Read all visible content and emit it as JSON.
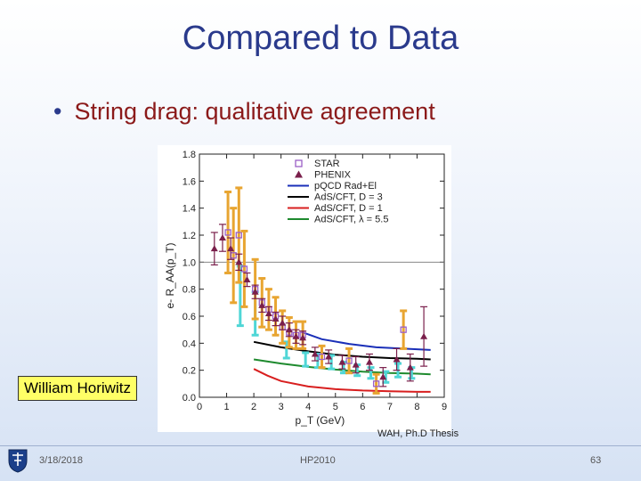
{
  "slide": {
    "title": "Compared to Data",
    "bullet": "String drag: qualitative agreement",
    "author_label": "William Horiwitz",
    "credit": "WAH, Ph.D Thesis",
    "footer": {
      "date": "3/18/2018",
      "event": "HP2010",
      "page": "63"
    }
  },
  "colors": {
    "title": "#2a3a8c",
    "bullet_text": "#8b1a1a",
    "star": "#9a5fc7",
    "phenix": "#7a1f4b",
    "pqcd": "#1a2fb8",
    "ads_d3": "#000000",
    "ads_d1": "#d81f1f",
    "ads_lambda": "#1e8a2e",
    "star_band": "#e8a531",
    "phenix_band": "#4fd6d6"
  },
  "chart_data": {
    "type": "scatter",
    "xlabel": "p_T (GeV)",
    "ylabel": "e- R_AA(p_T)",
    "xlim": [
      0,
      9
    ],
    "ylim": [
      0,
      1.8
    ],
    "x_ticks": [
      "0",
      "1",
      "2",
      "3",
      "4",
      "5",
      "6",
      "7",
      "8",
      "9"
    ],
    "y_ticks": [
      "0.0",
      "0.2",
      "0.4",
      "0.6",
      "0.8",
      "1.0",
      "1.2",
      "1.4",
      "1.6",
      "1.8"
    ],
    "reference_line_y": 1.0,
    "legend_position": "top-right",
    "legend": [
      "STAR",
      "PHENIX",
      "pQCD Rad+El",
      "AdS/CFT, D = 3",
      "AdS/CFT, D = 1",
      "AdS/CFT, λ = 5.5"
    ],
    "series": [
      {
        "name": "STAR",
        "kind": "points",
        "marker": "square",
        "x": [
          1.05,
          1.25,
          1.45,
          1.65,
          2.05,
          2.3,
          2.55,
          2.8,
          3.05,
          3.3,
          3.55,
          3.8,
          4.5,
          5.5,
          6.5,
          7.5
        ],
        "y": [
          1.22,
          1.05,
          1.2,
          0.95,
          0.8,
          0.7,
          0.65,
          0.6,
          0.52,
          0.48,
          0.46,
          0.46,
          0.3,
          0.27,
          0.1,
          0.5
        ],
        "err": [
          0.3,
          0.35,
          0.35,
          0.28,
          0.22,
          0.18,
          0.15,
          0.14,
          0.12,
          0.11,
          0.1,
          0.1,
          0.08,
          0.09,
          0.07,
          0.14
        ]
      },
      {
        "name": "PHENIX",
        "kind": "points",
        "marker": "triangle",
        "x": [
          0.55,
          0.85,
          1.15,
          1.45,
          1.75,
          2.05,
          2.3,
          2.55,
          2.8,
          3.05,
          3.3,
          3.55,
          3.8,
          4.25,
          4.75,
          5.25,
          5.75,
          6.25,
          6.75,
          7.25,
          7.75,
          8.25
        ],
        "y": [
          1.1,
          1.18,
          1.1,
          1.0,
          0.87,
          0.78,
          0.68,
          0.62,
          0.58,
          0.55,
          0.5,
          0.45,
          0.44,
          0.32,
          0.3,
          0.26,
          0.24,
          0.26,
          0.15,
          0.28,
          0.22,
          0.45
        ],
        "err": [
          0.12,
          0.1,
          0.08,
          0.06,
          0.05,
          0.05,
          0.05,
          0.05,
          0.05,
          0.05,
          0.05,
          0.05,
          0.05,
          0.05,
          0.05,
          0.05,
          0.06,
          0.06,
          0.07,
          0.08,
          0.1,
          0.22
        ]
      },
      {
        "name": "PHENIX systematic band",
        "kind": "errorbars",
        "x": [
          1.5,
          2.05,
          3.2,
          3.9,
          4.35,
          4.85,
          5.3,
          5.8,
          6.3,
          6.85,
          7.3,
          7.8
        ],
        "y": [
          0.75,
          0.62,
          0.35,
          0.28,
          0.27,
          0.26,
          0.22,
          0.2,
          0.18,
          0.15,
          0.2,
          0.18
        ],
        "err": [
          0.22,
          0.16,
          0.06,
          0.05,
          0.05,
          0.05,
          0.04,
          0.04,
          0.04,
          0.04,
          0.05,
          0.04
        ]
      },
      {
        "name": "pQCD Rad+El",
        "kind": "line",
        "x": [
          3.8,
          4.5,
          5.5,
          6.5,
          7.5,
          8.5
        ],
        "y": [
          0.48,
          0.43,
          0.395,
          0.37,
          0.36,
          0.35
        ]
      },
      {
        "name": "AdS/CFT, D = 3",
        "kind": "line",
        "x": [
          2.0,
          3.0,
          4.0,
          5.0,
          6.0,
          7.0,
          8.0,
          8.5
        ],
        "y": [
          0.41,
          0.37,
          0.34,
          0.315,
          0.3,
          0.29,
          0.285,
          0.28
        ]
      },
      {
        "name": "AdS/CFT, D = 1",
        "kind": "line",
        "x": [
          2.0,
          2.5,
          3.0,
          4.0,
          5.0,
          6.0,
          7.0,
          8.0,
          8.5
        ],
        "y": [
          0.21,
          0.16,
          0.12,
          0.08,
          0.06,
          0.05,
          0.045,
          0.04,
          0.04
        ]
      },
      {
        "name": "AdS/CFT, λ = 5.5",
        "kind": "line",
        "x": [
          2.0,
          3.0,
          4.0,
          5.0,
          6.0,
          7.0,
          8.0,
          8.5
        ],
        "y": [
          0.28,
          0.25,
          0.225,
          0.205,
          0.19,
          0.18,
          0.175,
          0.17
        ]
      }
    ]
  }
}
